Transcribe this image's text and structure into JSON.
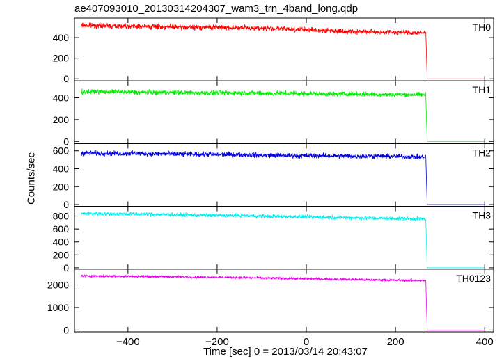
{
  "title": "ae407093010_20130314204307_wam3_trn_4band_long.qdp",
  "xlabel": "Time [sec] 0 = 2013/03/14 20:43:07",
  "ylabel": "Counts/sec",
  "chart_data": {
    "type": "line",
    "title": "ae407093010_20130314204307_wam3_trn_4band_long.qdp",
    "xlabel": "Time [sec] 0 = 2013/03/14 20:43:07",
    "ylabel": "Counts/sec",
    "xlim": [
      -520,
      420
    ],
    "xticks": [
      -400,
      -200,
      0,
      200,
      400
    ],
    "grid": false,
    "panels": [
      {
        "name": "TH0",
        "color": "#ff0000",
        "ylim": [
          -20,
          590
        ],
        "yticks": [
          0,
          200,
          400
        ],
        "x": [
          -505,
          -440,
          -380,
          -320,
          -260,
          -200,
          -140,
          -80,
          -20,
          40,
          100,
          160,
          220,
          268,
          271,
          300,
          400
        ],
        "y": [
          520,
          515,
          510,
          505,
          500,
          500,
          495,
          490,
          480,
          470,
          460,
          455,
          450,
          445,
          0,
          0,
          0
        ],
        "noise": 18
      },
      {
        "name": "TH1",
        "color": "#00ee00",
        "ylim": [
          -20,
          555
        ],
        "yticks": [
          0,
          200,
          400
        ],
        "x": [
          -505,
          -440,
          -380,
          -320,
          -260,
          -200,
          -140,
          -80,
          -20,
          40,
          100,
          160,
          220,
          268,
          271,
          300,
          400
        ],
        "y": [
          455,
          455,
          450,
          450,
          445,
          445,
          445,
          440,
          440,
          435,
          435,
          430,
          430,
          428,
          0,
          0,
          0
        ],
        "noise": 16
      },
      {
        "name": "TH2",
        "color": "#0000dd",
        "ylim": [
          -20,
          680
        ],
        "yticks": [
          0,
          200,
          400,
          600
        ],
        "x": [
          -505,
          -440,
          -380,
          -320,
          -260,
          -200,
          -140,
          -80,
          -20,
          40,
          100,
          160,
          220,
          268,
          271,
          300,
          400
        ],
        "y": [
          575,
          570,
          570,
          565,
          560,
          560,
          555,
          550,
          545,
          545,
          540,
          540,
          535,
          530,
          0,
          0,
          0
        ],
        "noise": 20
      },
      {
        "name": "TH3",
        "color": "#00eeee",
        "ylim": [
          -20,
          950
        ],
        "yticks": [
          0,
          200,
          400,
          600,
          800
        ],
        "x": [
          -505,
          -440,
          -380,
          -320,
          -260,
          -200,
          -140,
          -80,
          -20,
          40,
          100,
          160,
          220,
          268,
          271,
          300,
          400
        ],
        "y": [
          840,
          835,
          830,
          825,
          815,
          810,
          805,
          795,
          790,
          780,
          775,
          765,
          760,
          755,
          0,
          0,
          0
        ],
        "noise": 22
      },
      {
        "name": "TH0123",
        "color": "#ee00ee",
        "ylim": [
          -80,
          2700
        ],
        "yticks": [
          0,
          1000,
          2000
        ],
        "x": [
          -505,
          -440,
          -380,
          -320,
          -260,
          -200,
          -140,
          -80,
          -20,
          40,
          100,
          160,
          220,
          268,
          271,
          300,
          400
        ],
        "y": [
          2400,
          2390,
          2380,
          2370,
          2350,
          2340,
          2320,
          2300,
          2280,
          2260,
          2240,
          2220,
          2200,
          2190,
          0,
          0,
          0
        ],
        "noise": 40
      }
    ]
  }
}
